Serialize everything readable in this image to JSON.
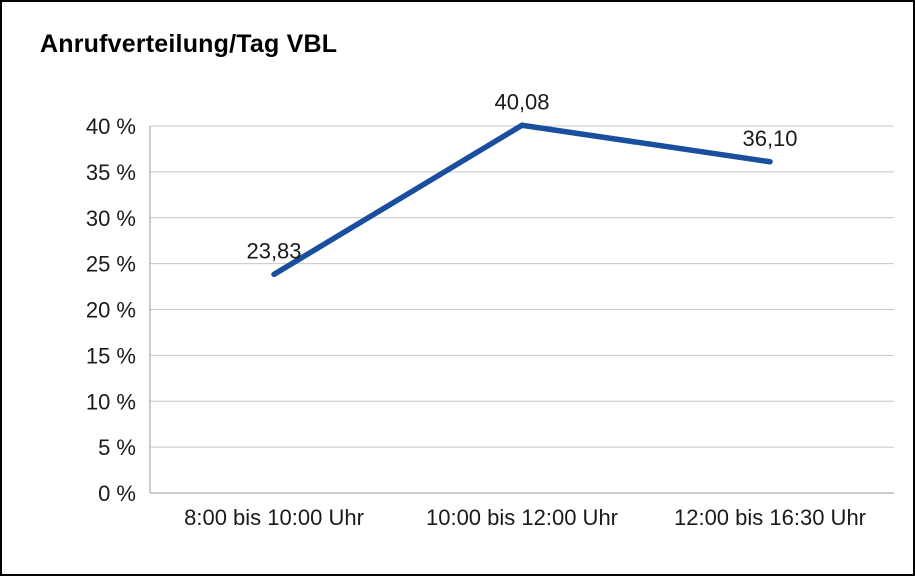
{
  "page": {
    "background": "#ffffff",
    "border_color": "#000000"
  },
  "chart_data": {
    "type": "line",
    "title": "Anrufverteilung/Tag VBL",
    "categories": [
      "8:00 bis 10:00 Uhr",
      "10:00 bis 12:00 Uhr",
      "12:00 bis 16:30 Uhr"
    ],
    "series": [
      {
        "values": [
          23.83,
          40.08,
          36.1
        ]
      }
    ],
    "data_labels": [
      "23,83",
      "40,08",
      "36,10"
    ],
    "y_ticks": [
      0,
      5,
      10,
      15,
      20,
      25,
      30,
      35,
      40
    ],
    "y_tick_labels": [
      "0 %",
      "5 %",
      "10 %",
      "15 %",
      "20 %",
      "25 %",
      "30 %",
      "35 %",
      "40 %"
    ],
    "ylim": [
      0,
      40
    ],
    "xlabel": "",
    "ylabel": "",
    "grid": true,
    "legend": false,
    "line_color": "#1a4f9e",
    "gridline_color": "#c6c6c6",
    "axis_color": "#9a9a9a",
    "text_color": "#1a1a1a"
  }
}
